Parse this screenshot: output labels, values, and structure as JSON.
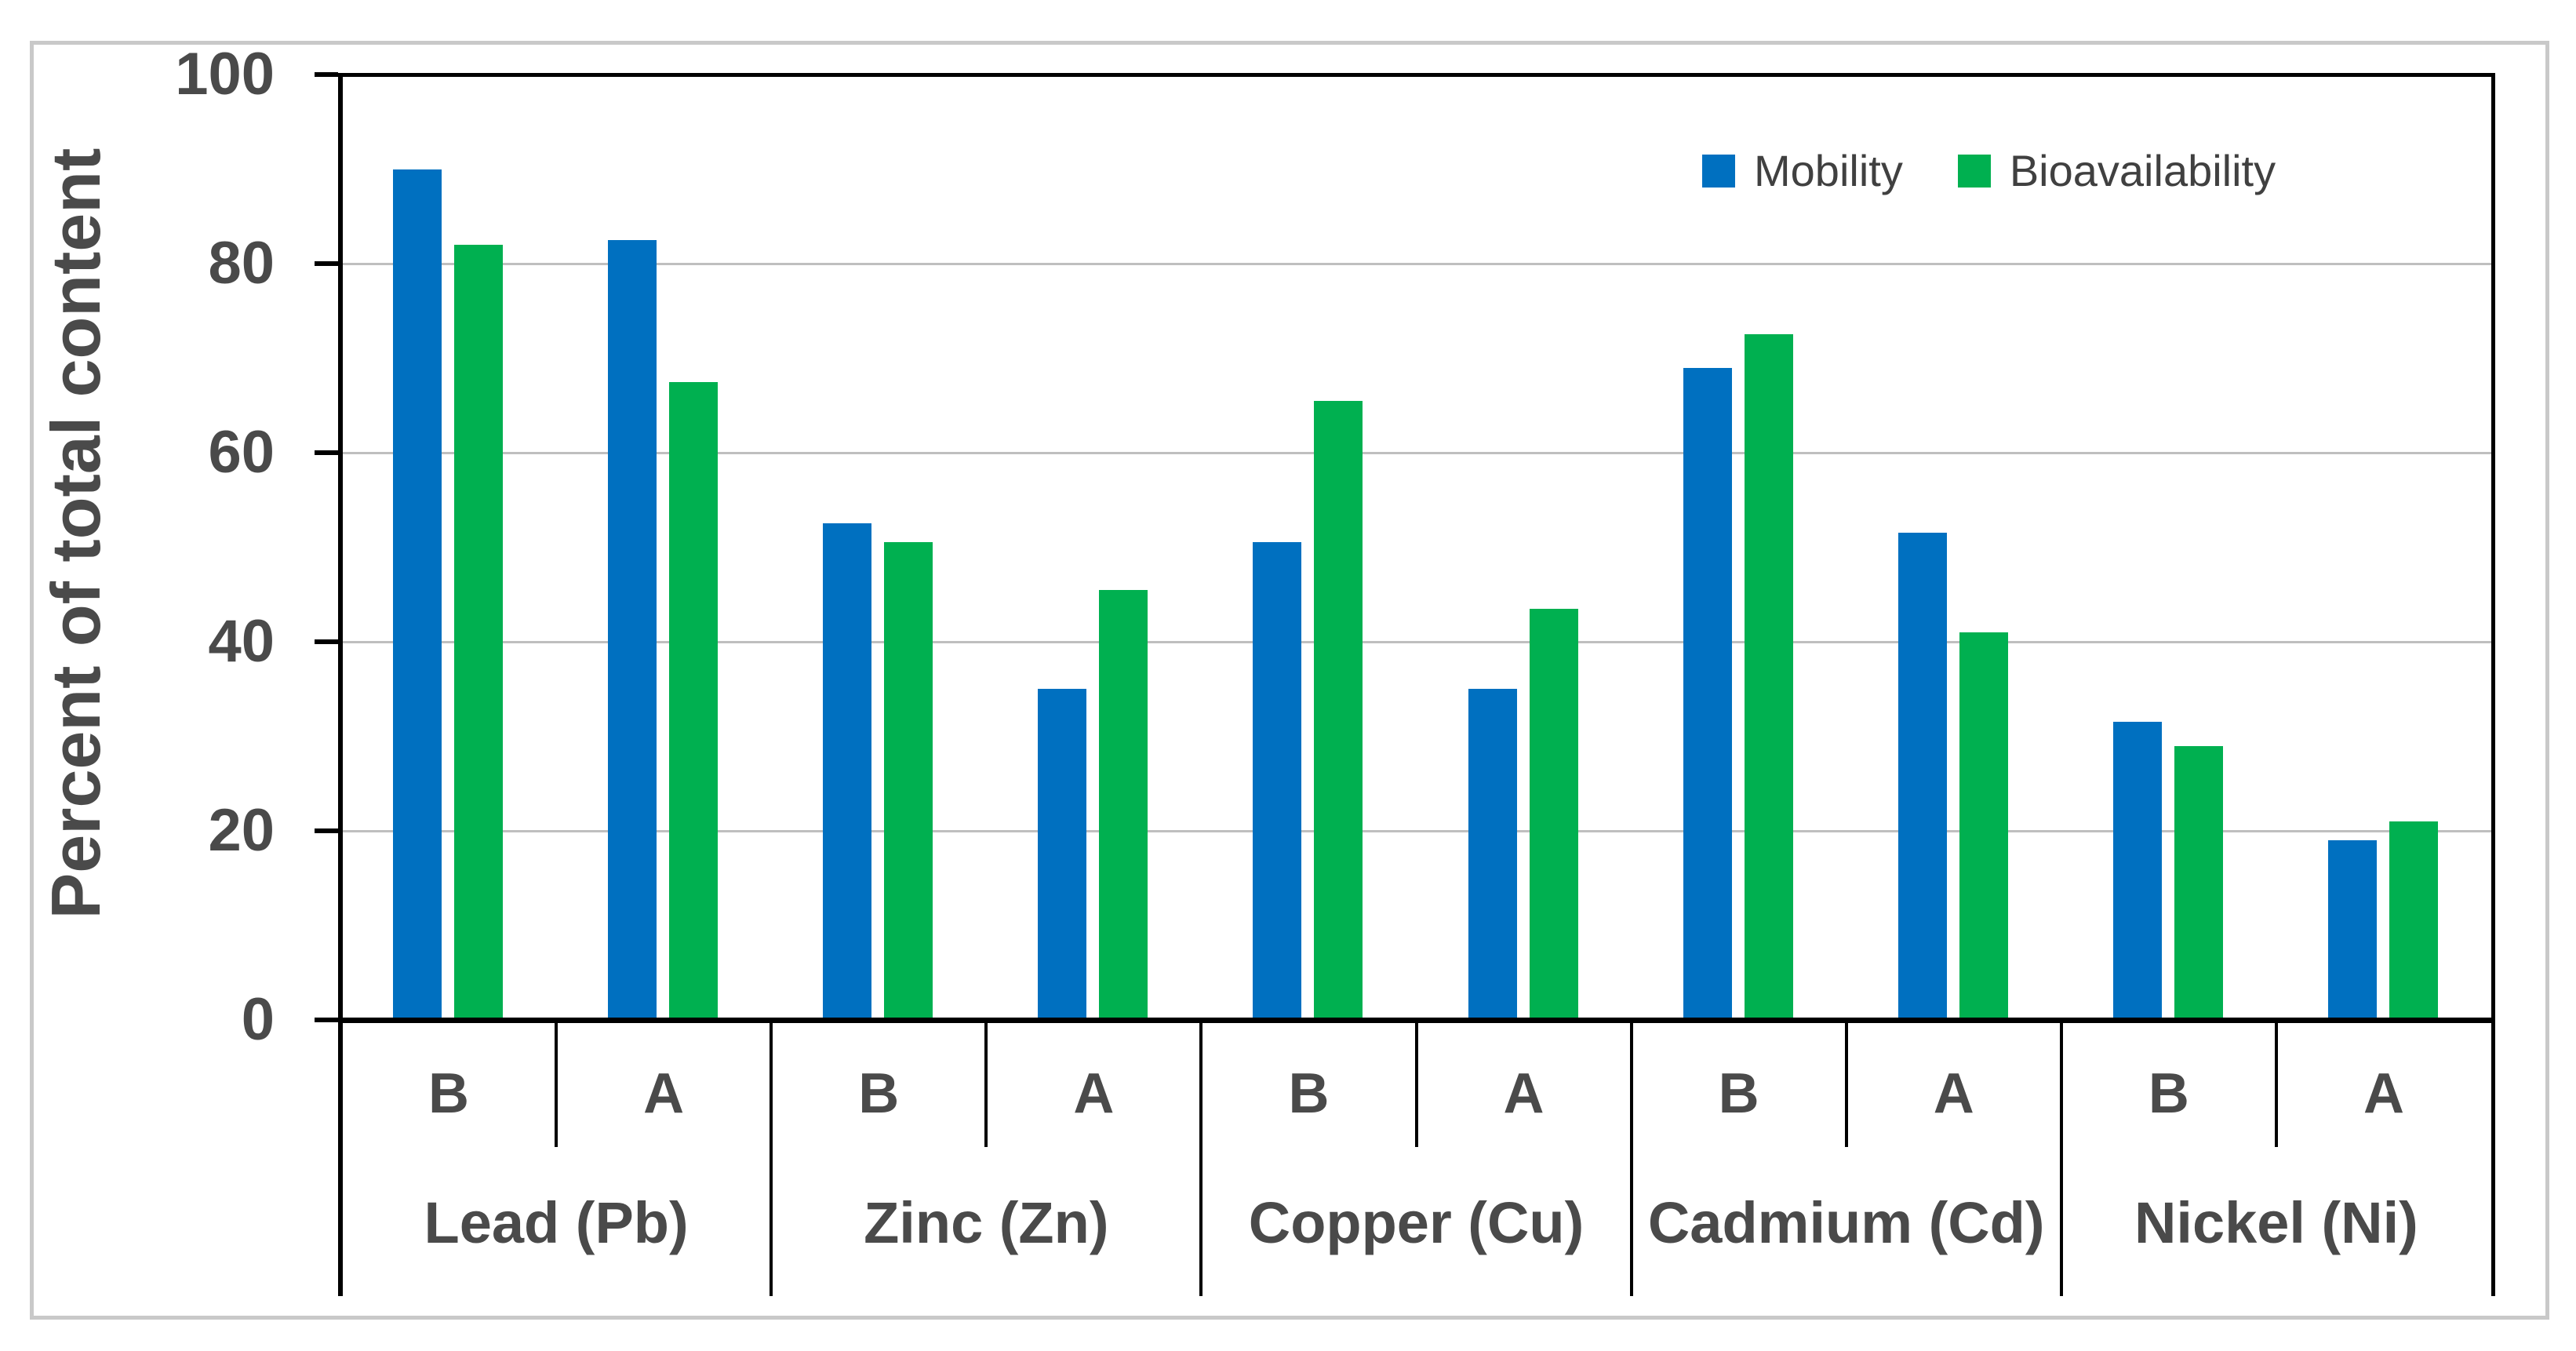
{
  "figure": {
    "background": "#ffffff",
    "border_color": "#c9c9c9"
  },
  "chart_data": {
    "type": "bar",
    "title": "",
    "ylabel": "Percent of total content",
    "xlabel": "",
    "ylim": [
      0,
      100
    ],
    "yticks": [
      0,
      20,
      40,
      60,
      80,
      100
    ],
    "grid": "horizontal",
    "gridline_color": "#bfbfbf",
    "axis_color": "#000000",
    "text_color": "#4a4a4a",
    "legend": {
      "position": "top-right-inside",
      "entries": [
        {
          "name": "Mobility",
          "color": "#0070C0"
        },
        {
          "name": "Bioavailability",
          "color": "#00B050"
        }
      ]
    },
    "x_slot_labels": [
      "B",
      "A",
      "B",
      "A",
      "B",
      "A",
      "B",
      "A",
      "B",
      "A"
    ],
    "metal_group_labels": [
      "Lead (Pb)",
      "Zinc (Zn)",
      "Copper (Cu)",
      "Cadmium (Cd)",
      "Nickel (Ni)"
    ],
    "categories": [
      {
        "metal": "Lead (Pb)",
        "groups": [
          {
            "label": "B",
            "Mobility": 90,
            "Bioavailability": 82
          },
          {
            "label": "A",
            "Mobility": 82.5,
            "Bioavailability": 67.5
          }
        ]
      },
      {
        "metal": "Zinc (Zn)",
        "groups": [
          {
            "label": "B",
            "Mobility": 52.5,
            "Bioavailability": 50.5
          },
          {
            "label": "A",
            "Mobility": 35,
            "Bioavailability": 45.5
          }
        ]
      },
      {
        "metal": "Copper (Cu)",
        "groups": [
          {
            "label": "B",
            "Mobility": 50.5,
            "Bioavailability": 65.5
          },
          {
            "label": "A",
            "Mobility": 35,
            "Bioavailability": 43.5
          }
        ]
      },
      {
        "metal": "Cadmium (Cd)",
        "groups": [
          {
            "label": "B",
            "Mobility": 69,
            "Bioavailability": 72.5
          },
          {
            "label": "A",
            "Mobility": 51.5,
            "Bioavailability": 41
          }
        ]
      },
      {
        "metal": "Nickel (Ni)",
        "groups": [
          {
            "label": "B",
            "Mobility": 31.5,
            "Bioavailability": 29
          },
          {
            "label": "A",
            "Mobility": 19,
            "Bioavailability": 21
          }
        ]
      }
    ],
    "series": [
      {
        "name": "Mobility",
        "color": "#0070C0",
        "values": [
          90,
          82.5,
          52.5,
          35,
          50.5,
          35,
          69,
          51.5,
          31.5,
          19
        ]
      },
      {
        "name": "Bioavailability",
        "color": "#00B050",
        "values": [
          82,
          67.5,
          50.5,
          45.5,
          65.5,
          43.5,
          72.5,
          41,
          29,
          21
        ]
      }
    ]
  }
}
